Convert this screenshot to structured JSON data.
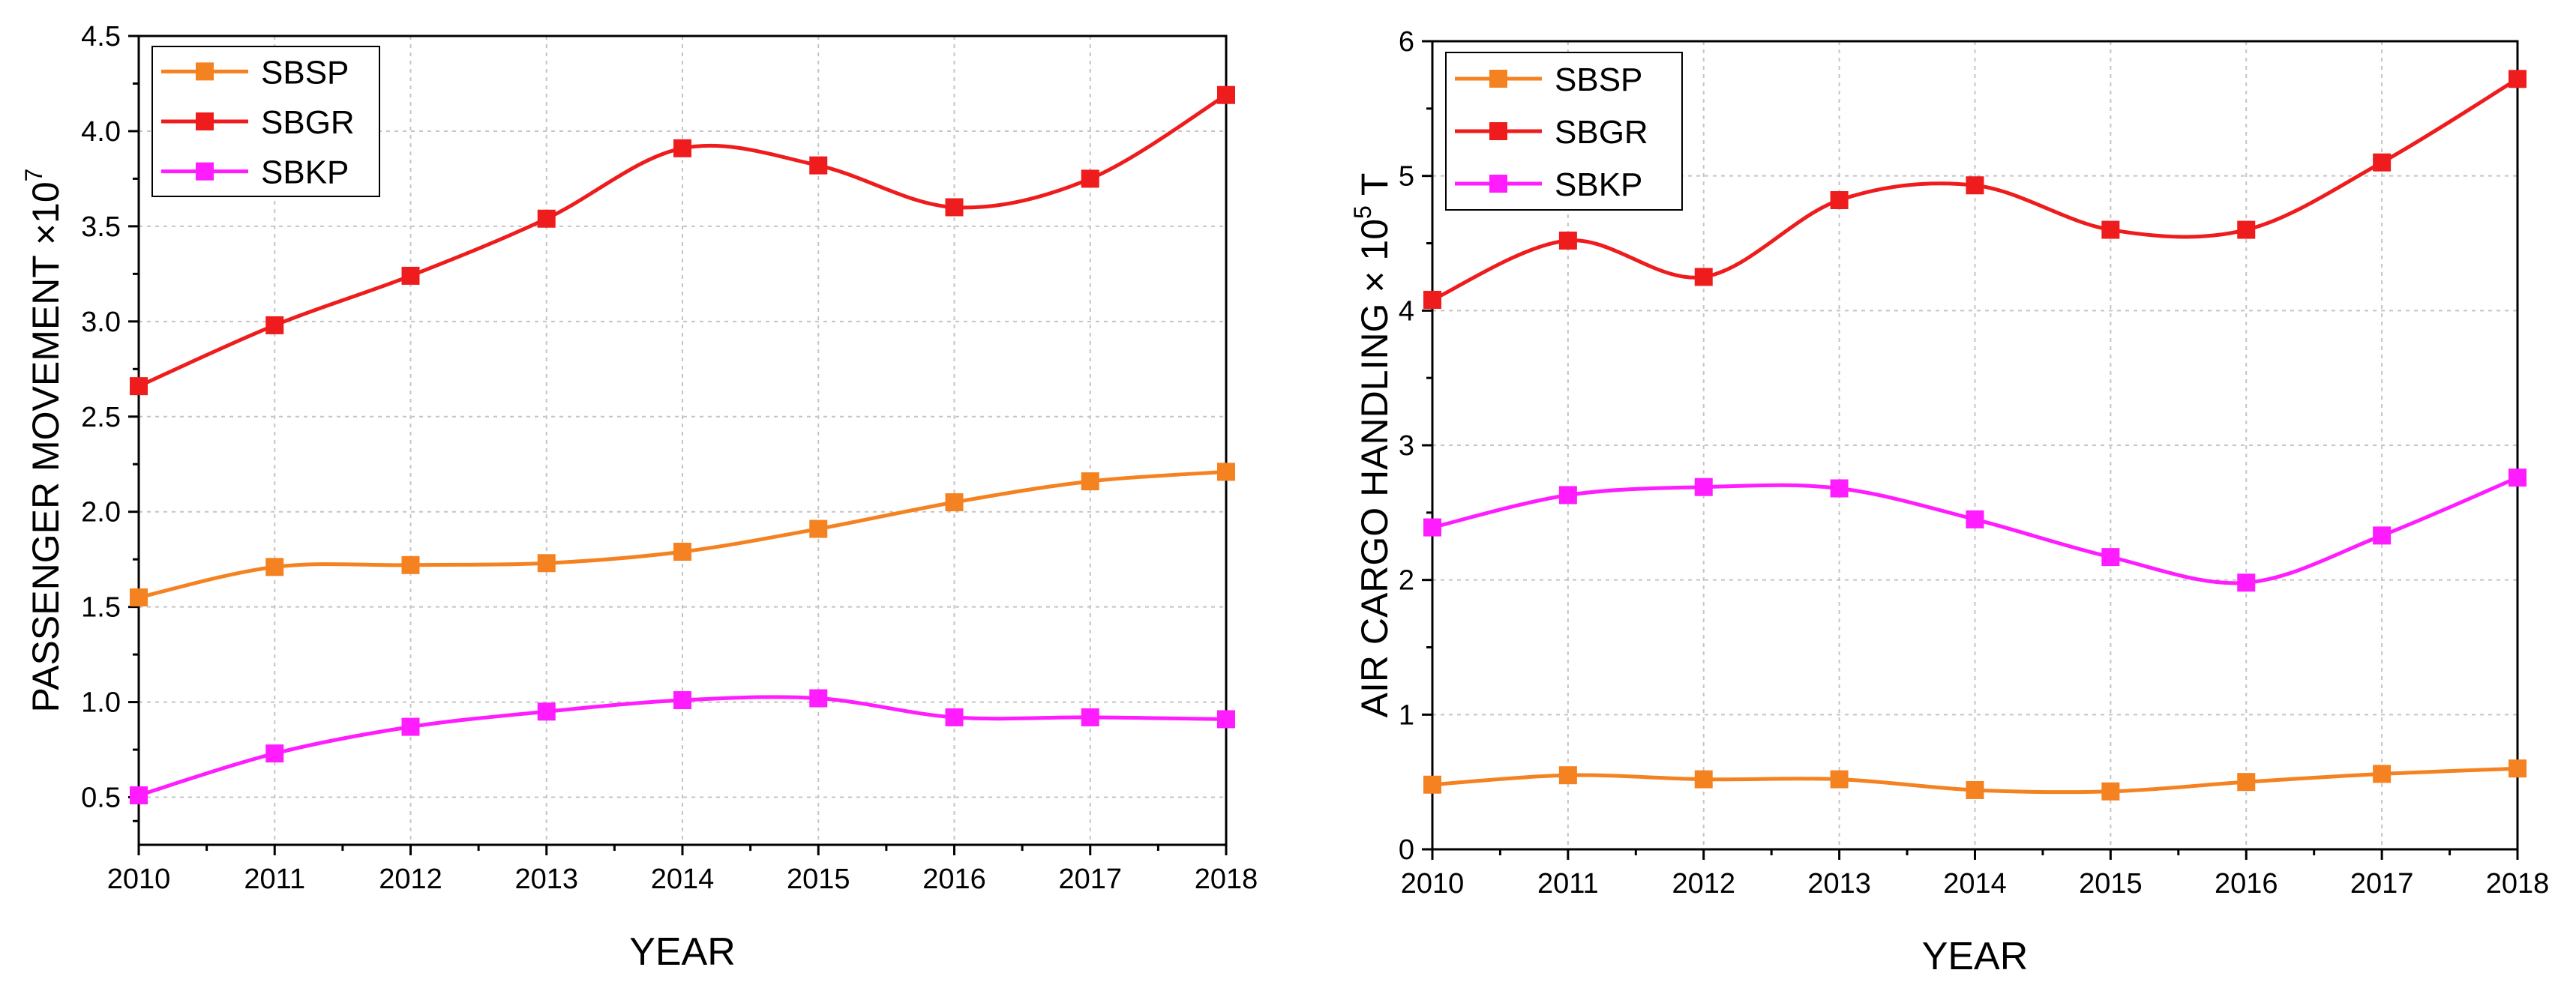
{
  "chart_data": [
    {
      "type": "line",
      "x": [
        2010,
        2011,
        2012,
        2013,
        2014,
        2015,
        2016,
        2017,
        2018
      ],
      "xlabel": "YEAR",
      "ylabel_main": "PASSENGER MOVEMENT ×10",
      "ylabel_sup": "7",
      "ylabel_suffix": "",
      "xlim": [
        2010,
        2018
      ],
      "ylim": [
        0.25,
        4.5
      ],
      "yticks": [
        "0.5",
        "1.0",
        "1.5",
        "2.0",
        "2.5",
        "3.0",
        "3.5",
        "4.0",
        "4.5"
      ],
      "ytick_values": [
        0.5,
        1.0,
        1.5,
        2.0,
        2.5,
        3.0,
        3.5,
        4.0,
        4.5
      ],
      "grid": true,
      "legend_position": "top-left",
      "series": [
        {
          "name": "SBSP",
          "color": "#F58220",
          "values": [
            1.55,
            1.71,
            1.72,
            1.73,
            1.79,
            1.91,
            2.05,
            2.16,
            2.21
          ]
        },
        {
          "name": "SBGR",
          "color": "#EE1C1C",
          "values": [
            2.66,
            2.98,
            3.24,
            3.54,
            3.91,
            3.82,
            3.6,
            3.75,
            4.19
          ]
        },
        {
          "name": "SBKP",
          "color": "#FF1CFF",
          "values": [
            0.51,
            0.73,
            0.87,
            0.95,
            1.01,
            1.02,
            0.92,
            0.92,
            0.91
          ]
        }
      ]
    },
    {
      "type": "line",
      "x": [
        2010,
        2011,
        2012,
        2013,
        2014,
        2015,
        2016,
        2017,
        2018
      ],
      "xlabel": "YEAR",
      "ylabel_main": "AIR CARGO HANDLING × 10",
      "ylabel_sup": "5",
      "ylabel_suffix": " T",
      "xlim": [
        2010,
        2018
      ],
      "ylim": [
        0,
        6
      ],
      "yticks": [
        "0",
        "1",
        "2",
        "3",
        "4",
        "5",
        "6"
      ],
      "ytick_values": [
        0,
        1,
        2,
        3,
        4,
        5,
        6
      ],
      "grid": true,
      "legend_position": "top-left",
      "series": [
        {
          "name": "SBSP",
          "color": "#F58220",
          "values": [
            0.48,
            0.55,
            0.52,
            0.52,
            0.44,
            0.43,
            0.5,
            0.56,
            0.6
          ]
        },
        {
          "name": "SBGR",
          "color": "#EE1C1C",
          "values": [
            4.08,
            4.52,
            4.25,
            4.82,
            4.93,
            4.6,
            4.6,
            5.1,
            5.72
          ]
        },
        {
          "name": "SBKP",
          "color": "#FF1CFF",
          "values": [
            2.39,
            2.63,
            2.69,
            2.68,
            2.45,
            2.17,
            1.98,
            2.33,
            2.76
          ]
        }
      ]
    }
  ]
}
